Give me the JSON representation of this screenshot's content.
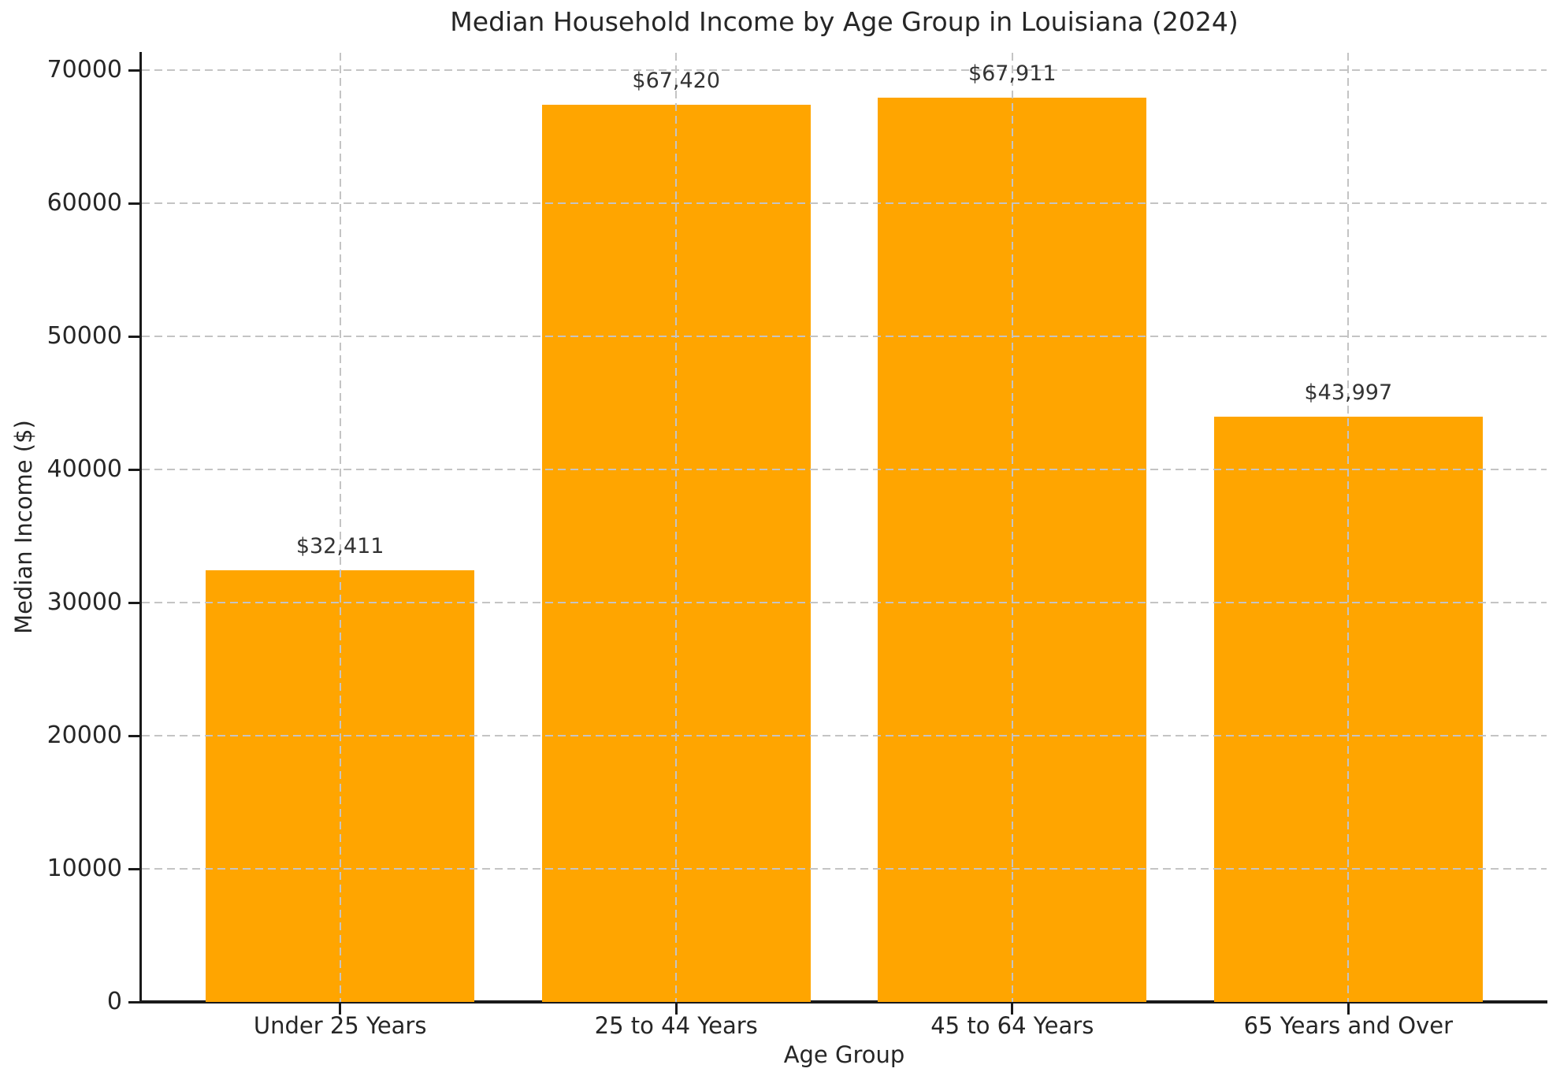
{
  "chart_data": {
    "type": "bar",
    "title": "Median Household Income by Age Group in Louisiana (2024)",
    "xlabel": "Age Group",
    "ylabel": "Median Income ($)",
    "categories": [
      "Under 25 Years",
      "25 to 44 Years",
      "45 to 64 Years",
      "65 Years and Over"
    ],
    "values": [
      32411,
      67420,
      67911,
      43997
    ],
    "value_labels": [
      "$32,411",
      "$67,420",
      "$67,911",
      "$43,997"
    ],
    "yticks": [
      0,
      10000,
      20000,
      30000,
      40000,
      50000,
      60000,
      70000
    ],
    "ylim": [
      0,
      71307
    ],
    "xlim": [
      -0.59,
      3.59
    ],
    "bar_width": 0.8,
    "bar_color": "#FFA500",
    "grid": {
      "style": "dashed",
      "color": "#c4c4c4",
      "over_bars": true,
      "horizontal": true,
      "vertical": true
    },
    "colors": {
      "text": "#262626",
      "axis": "#1a1a1a",
      "value_label_text": "#333333"
    },
    "legend": "none"
  }
}
